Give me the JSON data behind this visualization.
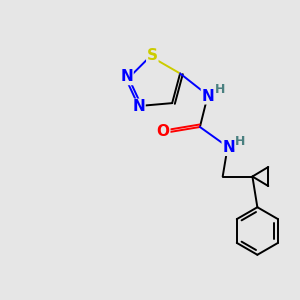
{
  "bg_color": "#e6e6e6",
  "atom_colors": {
    "N": "#0000ff",
    "S": "#cccc00",
    "O": "#ff0000",
    "C": "#000000",
    "H_label": "#4a8080"
  },
  "font_size_atom": 10,
  "fig_size": [
    3.0,
    3.0
  ],
  "dpi": 100,
  "lw": 1.4
}
